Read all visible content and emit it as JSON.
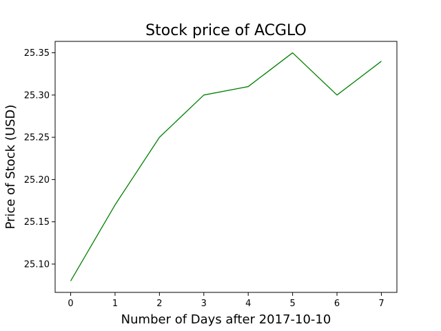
{
  "chart_data": {
    "type": "line",
    "title": "Stock price of ACGLO",
    "xlabel": "Number of Days after 2017-10-10",
    "ylabel": "Price of Stock (USD)",
    "x": [
      0,
      1,
      2,
      3,
      4,
      5,
      6,
      7
    ],
    "series": [
      {
        "values": [
          25.08,
          25.17,
          25.25,
          25.3,
          25.31,
          25.35,
          25.3,
          25.34
        ],
        "color": "#008000"
      }
    ],
    "xticks": [
      "0",
      "1",
      "2",
      "3",
      "4",
      "5",
      "6",
      "7"
    ],
    "yticks": [
      "25.10",
      "25.15",
      "25.20",
      "25.25",
      "25.30",
      "25.35"
    ],
    "xlim": [
      -0.35,
      7.35
    ],
    "ylim": [
      25.0665,
      25.3635
    ],
    "grid": false,
    "legend": "none"
  }
}
